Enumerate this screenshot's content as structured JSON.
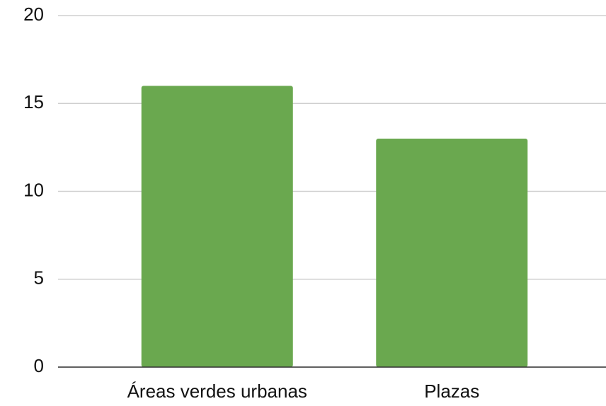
{
  "chart_data": {
    "type": "bar",
    "categories": [
      "Áreas verdes urbanas",
      "Plazas"
    ],
    "values": [
      16,
      13
    ],
    "color": "#6aa84f",
    "ylim": [
      0,
      20
    ],
    "yticks": [
      0,
      5,
      10,
      15,
      20
    ],
    "grid": true
  }
}
